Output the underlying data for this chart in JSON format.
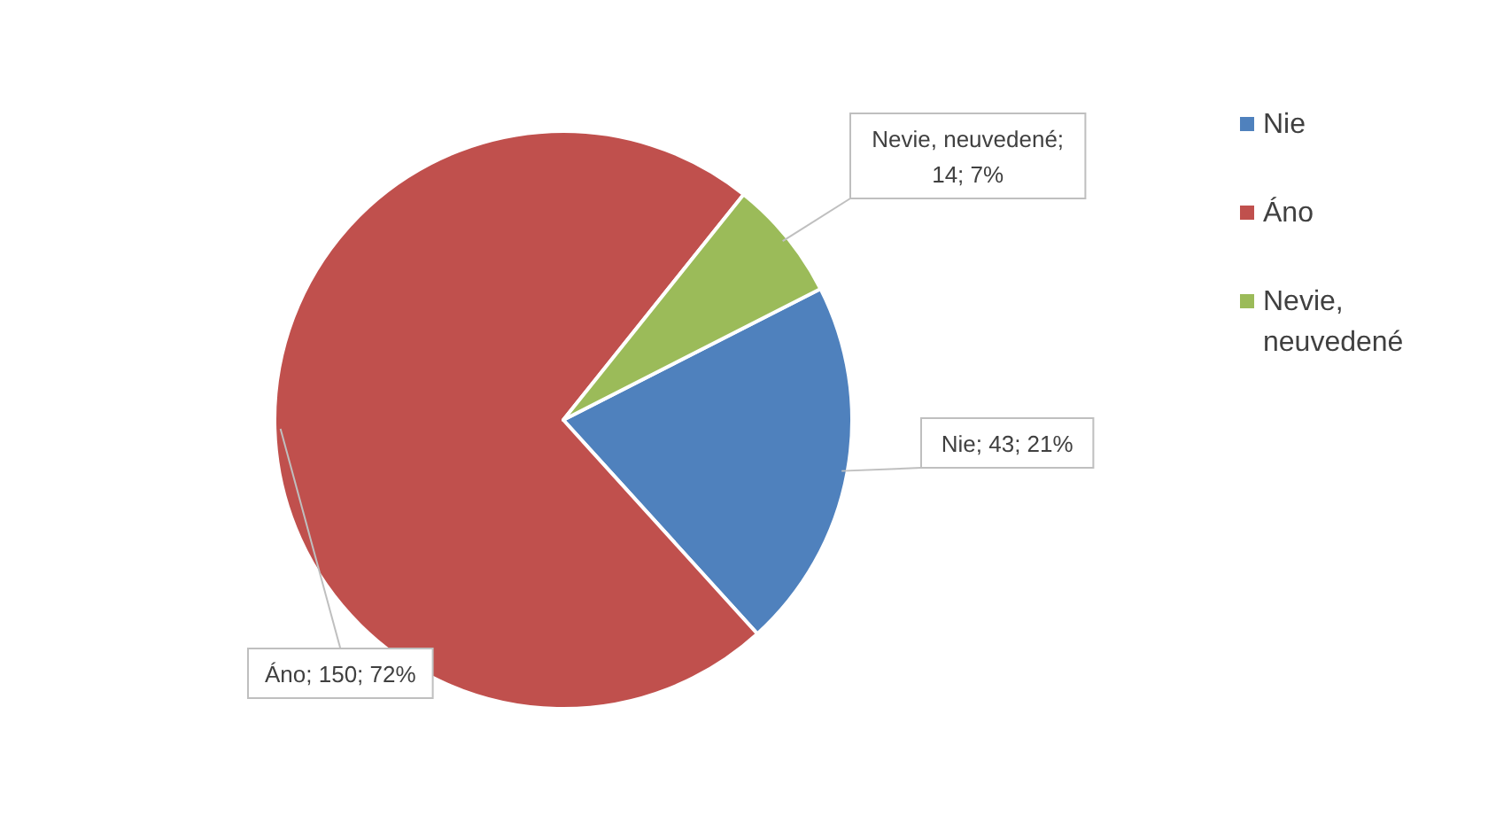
{
  "chart_data": {
    "type": "pie",
    "categories": [
      "Nie",
      "Áno",
      "Nevie, neuvedené"
    ],
    "values": [
      43,
      150,
      14
    ],
    "colors": [
      "#4f81bd",
      "#c0504d",
      "#9bbb59"
    ],
    "value_labels": [
      "Nie; 43; 21%",
      "Áno; 150; 72%",
      "Nevie, neuvedené; 14; 7%"
    ],
    "legend": "right"
  }
}
